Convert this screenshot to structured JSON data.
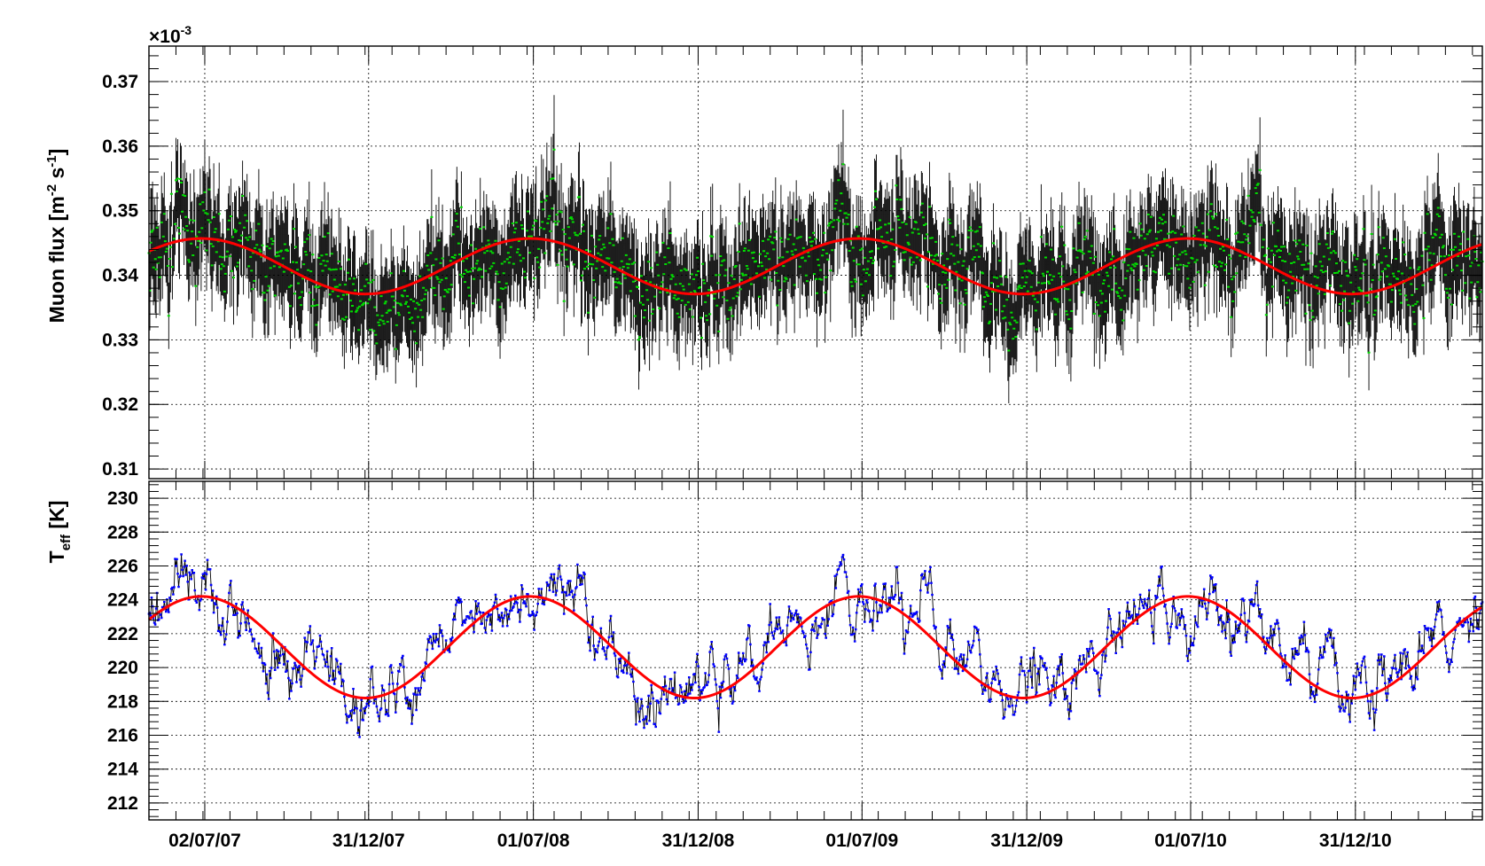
{
  "chart_data": [
    {
      "type": "scatter",
      "title": "",
      "ylabel_main": "Muon flux [m",
      "ylabel_sup1": "-2",
      "ylabel_mid": " s",
      "ylabel_sup2": "-1",
      "ylabel_end": "]",
      "y_multiplier_base": "×10",
      "y_multiplier_exp": "-3",
      "ylim": [
        0.3085,
        0.3755
      ],
      "y_major_ticks": [
        0.31,
        0.32,
        0.33,
        0.34,
        0.35,
        0.36,
        0.37
      ],
      "y_tick_labels": [
        "0.31",
        "0.32",
        "0.33",
        "0.34",
        "0.35",
        "0.36",
        "0.37"
      ],
      "fit": {
        "mean": 0.3414,
        "amplitude": 0.0043,
        "peak_date": "2007-06-28",
        "period_days": 365.25,
        "color": "#ff0000"
      },
      "marker_color": "#00dd00",
      "error_bar_color": "#000000",
      "noise_sigma": 0.0045,
      "error_sigma": 0.0085
    },
    {
      "type": "scatter",
      "title": "",
      "ylabel_main": "T",
      "ylabel_sub": "eff",
      "ylabel_end": " [K]",
      "ylim": [
        211.0,
        231.0
      ],
      "y_major_ticks": [
        212,
        214,
        216,
        218,
        220,
        222,
        224,
        226,
        228,
        230
      ],
      "y_tick_labels": [
        "212",
        "214",
        "216",
        "218",
        "220",
        "222",
        "224",
        "226",
        "228",
        "230"
      ],
      "fit": {
        "mean": 221.2,
        "amplitude": 3.0,
        "peak_date": "2007-06-28",
        "period_days": 365.25,
        "color": "#ff0000"
      },
      "marker_color": "#0000ff",
      "line_color": "#000000",
      "noise_sigma": 1.6
    }
  ],
  "x_axis": {
    "xlim": [
      "2007-05-01",
      "2011-05-21"
    ],
    "date_ticks": [
      "2007-07-02",
      "2007-12-31",
      "2008-07-01",
      "2008-12-31",
      "2009-07-01",
      "2009-12-31",
      "2010-07-01",
      "2010-12-31"
    ],
    "tick_labels": [
      "02/07/07",
      "31/12/07",
      "01/07/08",
      "31/12/08",
      "01/07/09",
      "31/12/09",
      "01/07/10",
      "31/12/10"
    ],
    "minor_every_days": 30
  }
}
